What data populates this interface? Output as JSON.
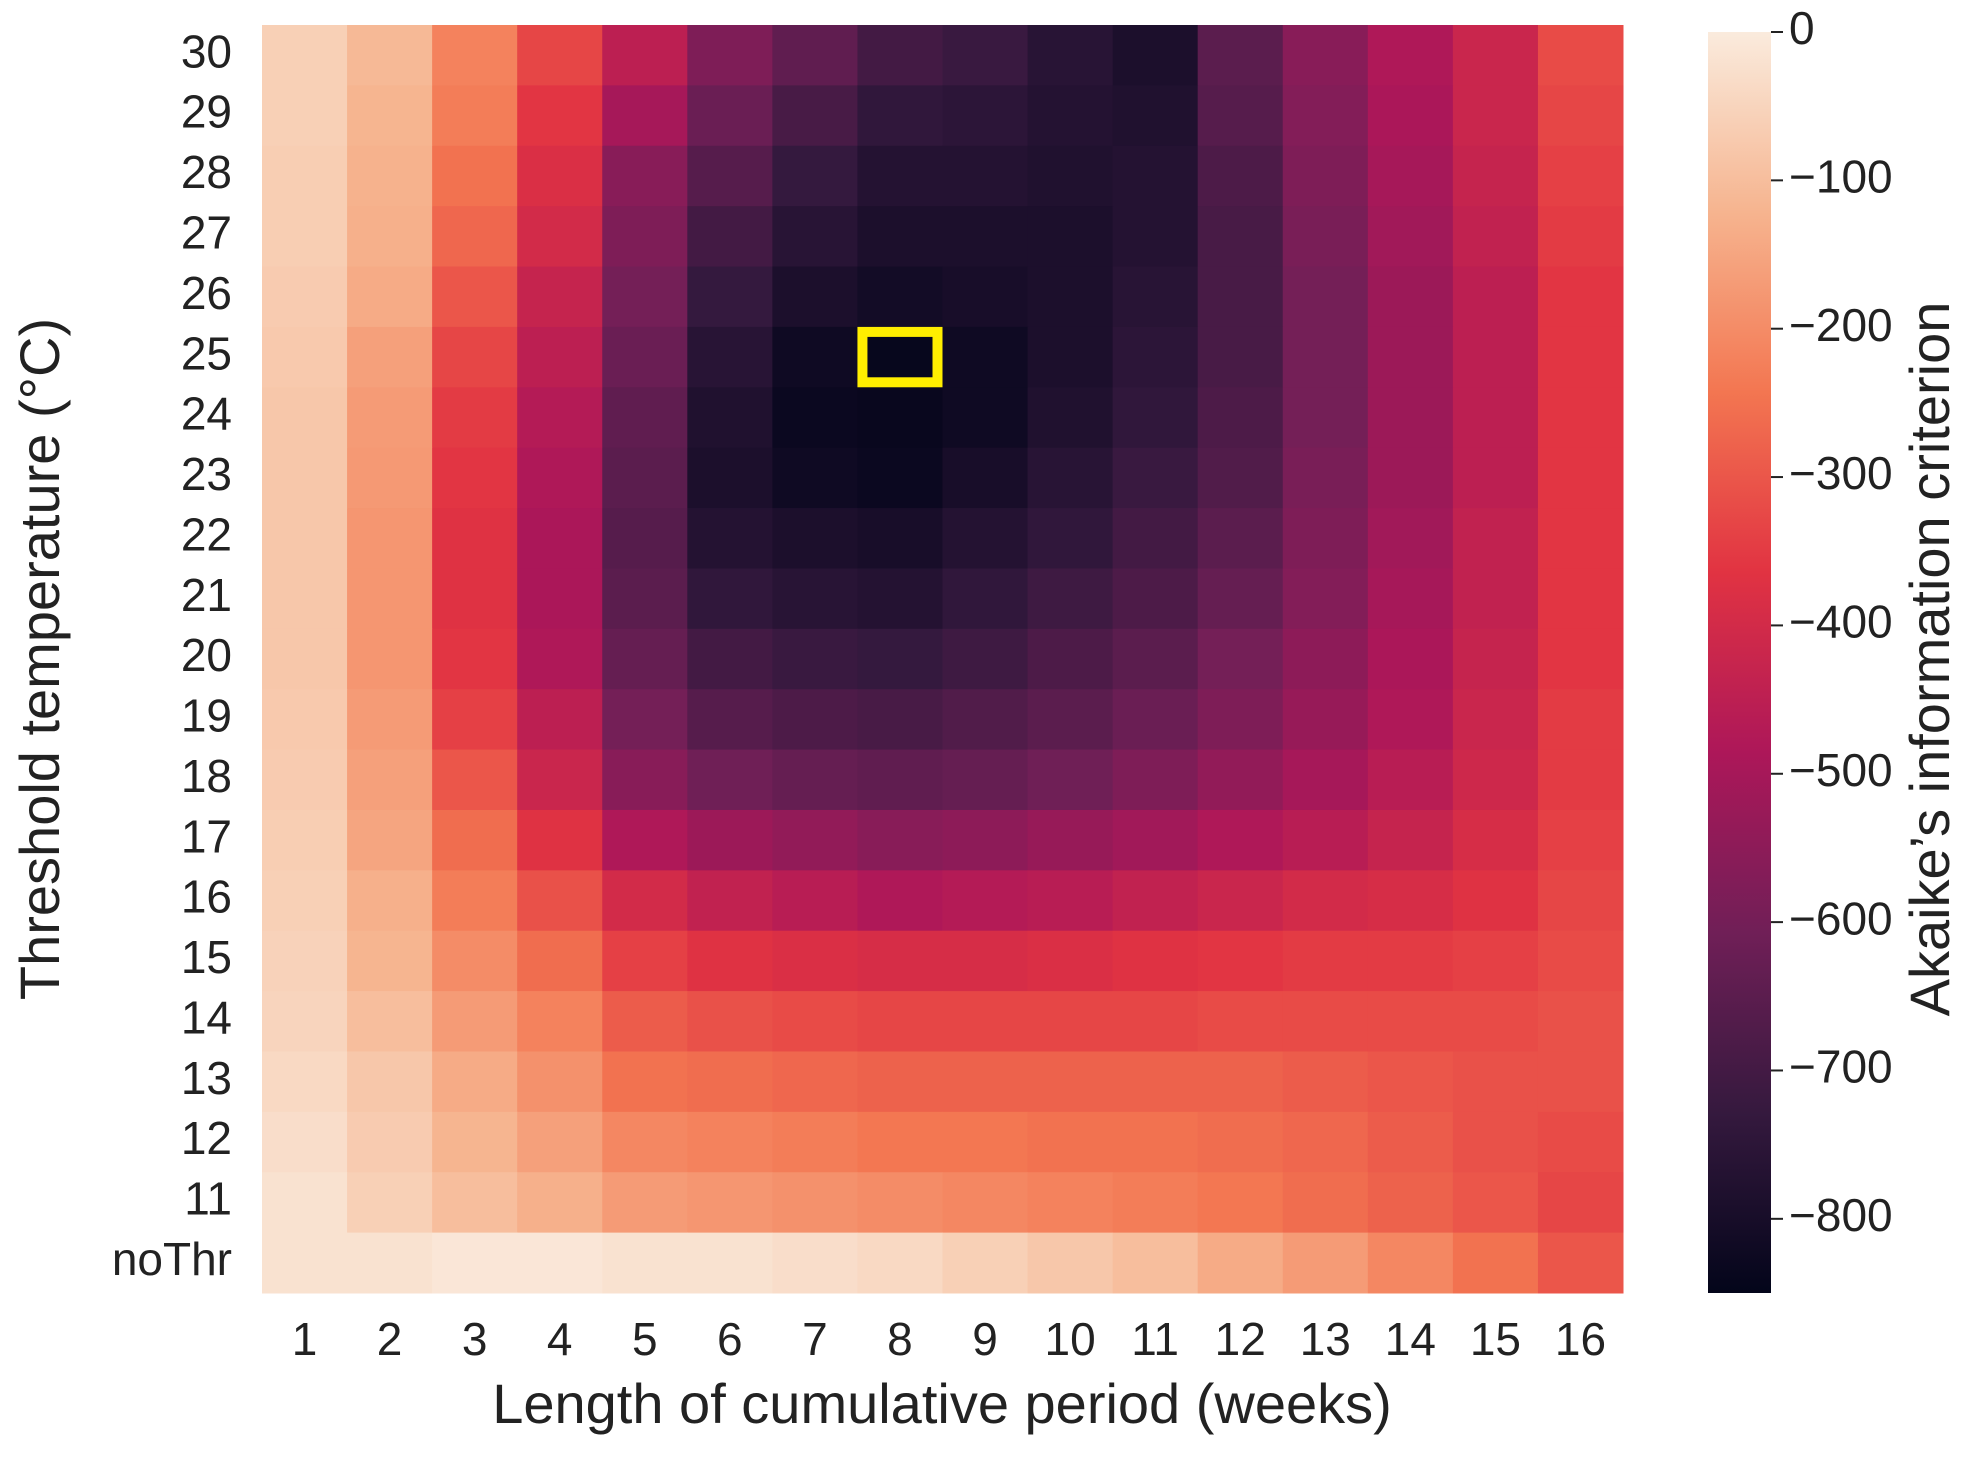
{
  "chart_data": {
    "type": "heatmap",
    "x_label": "Length of cumulative period (weeks)",
    "y_label": "Threshold temperature (°C)",
    "colorbar_label": "Akaike’s information criterion",
    "x": [
      "1",
      "2",
      "3",
      "4",
      "5",
      "6",
      "7",
      "8",
      "9",
      "10",
      "11",
      "12",
      "13",
      "14",
      "15",
      "16"
    ],
    "y": [
      "30",
      "29",
      "28",
      "27",
      "26",
      "25",
      "24",
      "23",
      "22",
      "21",
      "20",
      "19",
      "18",
      "17",
      "16",
      "15",
      "14",
      "13",
      "12",
      "11",
      "noThr"
    ],
    "values": [
      [
        -60,
        -110,
        -220,
        -330,
        -450,
        -580,
        -640,
        -700,
        -720,
        -760,
        -790,
        -650,
        -560,
        -480,
        -420,
        -320
      ],
      [
        -60,
        -120,
        -230,
        -360,
        -500,
        -620,
        -690,
        -740,
        -750,
        -770,
        -780,
        -660,
        -570,
        -490,
        -420,
        -330
      ],
      [
        -65,
        -125,
        -250,
        -380,
        -560,
        -660,
        -730,
        -770,
        -770,
        -780,
        -770,
        -680,
        -580,
        -500,
        -430,
        -340
      ],
      [
        -65,
        -130,
        -270,
        -400,
        -580,
        -700,
        -760,
        -790,
        -790,
        -790,
        -770,
        -690,
        -590,
        -510,
        -440,
        -350
      ],
      [
        -70,
        -140,
        -300,
        -430,
        -600,
        -730,
        -790,
        -810,
        -800,
        -790,
        -760,
        -690,
        -600,
        -520,
        -450,
        -360
      ],
      [
        -75,
        -160,
        -330,
        -450,
        -620,
        -760,
        -820,
        -840,
        -820,
        -790,
        -750,
        -690,
        -600,
        -520,
        -450,
        -360
      ],
      [
        -80,
        -170,
        -350,
        -470,
        -640,
        -780,
        -830,
        -835,
        -820,
        -780,
        -740,
        -680,
        -600,
        -520,
        -450,
        -360
      ],
      [
        -80,
        -175,
        -360,
        -480,
        -650,
        -790,
        -820,
        -830,
        -800,
        -760,
        -720,
        -670,
        -590,
        -520,
        -450,
        -360
      ],
      [
        -80,
        -180,
        -370,
        -490,
        -660,
        -770,
        -790,
        -800,
        -770,
        -740,
        -700,
        -650,
        -580,
        -510,
        -440,
        -360
      ],
      [
        -80,
        -180,
        -370,
        -490,
        -650,
        -740,
        -760,
        -770,
        -740,
        -710,
        -680,
        -630,
        -570,
        -500,
        -440,
        -360
      ],
      [
        -80,
        -180,
        -360,
        -480,
        -630,
        -700,
        -720,
        -730,
        -710,
        -680,
        -650,
        -600,
        -550,
        -490,
        -430,
        -360
      ],
      [
        -75,
        -170,
        -340,
        -450,
        -600,
        -660,
        -680,
        -690,
        -670,
        -650,
        -620,
        -580,
        -530,
        -480,
        -420,
        -350
      ],
      [
        -70,
        -160,
        -300,
        -420,
        -560,
        -610,
        -630,
        -640,
        -630,
        -610,
        -580,
        -540,
        -500,
        -460,
        -410,
        -350
      ],
      [
        -65,
        -150,
        -260,
        -370,
        -480,
        -520,
        -540,
        -560,
        -550,
        -530,
        -510,
        -480,
        -460,
        -430,
        -390,
        -340
      ],
      [
        -60,
        -130,
        -230,
        -310,
        -400,
        -440,
        -460,
        -480,
        -470,
        -460,
        -440,
        -420,
        -400,
        -390,
        -370,
        -330
      ],
      [
        -55,
        -120,
        -200,
        -260,
        -340,
        -370,
        -380,
        -390,
        -390,
        -380,
        -370,
        -360,
        -350,
        -350,
        -340,
        -320
      ],
      [
        -50,
        -100,
        -170,
        -220,
        -290,
        -310,
        -320,
        -330,
        -330,
        -330,
        -330,
        -320,
        -320,
        -320,
        -320,
        -310
      ],
      [
        -40,
        -80,
        -140,
        -190,
        -250,
        -260,
        -270,
        -280,
        -280,
        -280,
        -280,
        -280,
        -290,
        -300,
        -310,
        -310
      ],
      [
        -30,
        -70,
        -120,
        -160,
        -210,
        -220,
        -230,
        -240,
        -240,
        -250,
        -250,
        -260,
        -270,
        -290,
        -310,
        -320
      ],
      [
        -20,
        -60,
        -100,
        -130,
        -170,
        -180,
        -190,
        -200,
        -210,
        -220,
        -230,
        -240,
        -260,
        -280,
        -300,
        -330
      ],
      [
        -20,
        -20,
        -10,
        -10,
        -20,
        -20,
        -30,
        -40,
        -60,
        -80,
        -100,
        -140,
        -170,
        -210,
        -250,
        -300
      ]
    ],
    "zlim": [
      -850,
      0
    ],
    "zticks": [
      0,
      {
        "value": -100,
        "label": "−100"
      },
      {
        "value": -200,
        "label": "−200"
      },
      {
        "value": -300,
        "label": "−300"
      },
      {
        "value": -400,
        "label": "−400"
      },
      {
        "value": -500,
        "label": "−500"
      },
      {
        "value": -600,
        "label": "−600"
      },
      {
        "value": -700,
        "label": "−700"
      },
      {
        "value": -800,
        "label": "−800"
      }
    ],
    "colors": [
      "#03051a",
      "#35193e",
      "#701f57",
      "#ad1759",
      "#e13342",
      "#f37651",
      "#f6b48f",
      "#faebdd"
    ],
    "highlight_color": "#ffee00"
  }
}
